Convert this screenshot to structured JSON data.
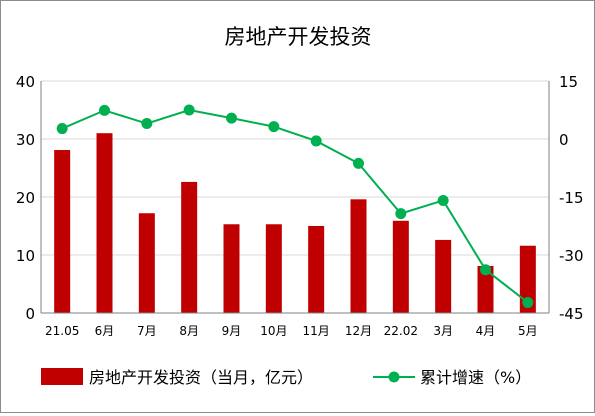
{
  "chart_data": {
    "type": "bar",
    "title": "房地产开发投资",
    "categories": [
      "21.05",
      "6月",
      "7月",
      "8月",
      "9月",
      "10月",
      "11月",
      "12月",
      "22.02",
      "3月",
      "4月",
      "5月"
    ],
    "y_left": {
      "min": 0,
      "max": 40,
      "ticks": [
        "0",
        "10",
        "20",
        "30",
        "40"
      ]
    },
    "y_right": {
      "min": -45,
      "max": 15,
      "ticks": [
        "-45",
        "-30",
        "-15",
        "0",
        "15"
      ]
    },
    "grid": true,
    "legend_position": "bottom",
    "series": [
      {
        "name": "房地产开发投资（当月，亿元）",
        "type": "bar",
        "axis": "left",
        "color": "#c00000",
        "values": [
          28.1,
          31.0,
          17.2,
          22.6,
          15.3,
          15.3,
          15.0,
          19.6,
          15.9,
          12.6,
          8.1,
          11.6
        ]
      },
      {
        "name": "累计增速（%）",
        "type": "line",
        "axis": "right",
        "color": "#00b050",
        "values": [
          2.7,
          7.4,
          4.0,
          7.5,
          5.4,
          3.2,
          -0.5,
          -6.3,
          -19.3,
          -15.9,
          -33.8,
          -42.3
        ]
      }
    ]
  }
}
